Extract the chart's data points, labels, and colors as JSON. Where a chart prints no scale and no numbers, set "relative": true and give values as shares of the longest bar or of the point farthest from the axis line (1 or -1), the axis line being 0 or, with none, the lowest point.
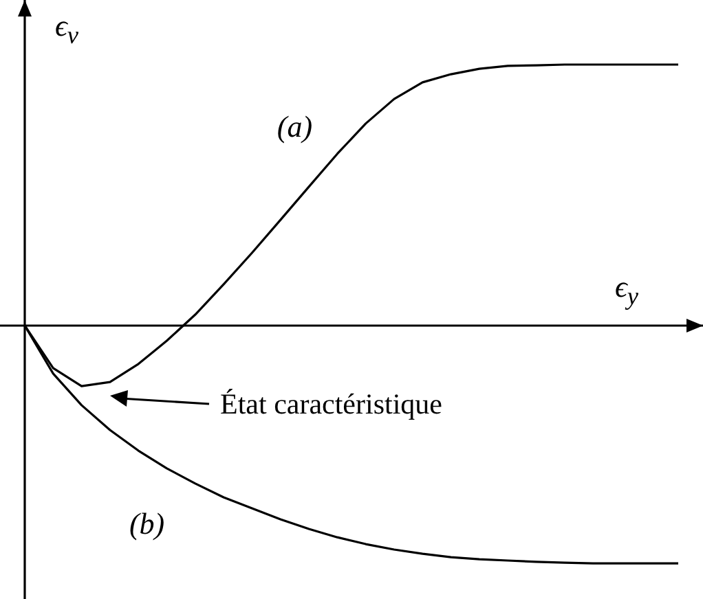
{
  "chart_data": {
    "type": "line",
    "relative": true,
    "xlabel": "ϵ$_{y}$",
    "ylabel": "ϵ$_{v}$",
    "categories": [
      null,
      null,
      null,
      null,
      null,
      null,
      null,
      null,
      null,
      null,
      null,
      null,
      null,
      null,
      null,
      null,
      null,
      null,
      null,
      null,
      null,
      null,
      null,
      null
    ],
    "series": [
      {
        "name": "(a)",
        "color": "#000000",
        "values": [
          0,
          -0.163,
          -0.232,
          -0.216,
          -0.147,
          -0.058,
          0.042,
          0.158,
          0.279,
          0.405,
          0.532,
          0.658,
          0.774,
          0.868,
          0.932,
          0.963,
          0.984,
          0.995,
          0.997,
          1,
          1,
          1,
          1,
          1
        ]
      },
      {
        "name": "(b)",
        "color": "#000000",
        "values": [
          0,
          -0.184,
          -0.305,
          -0.4,
          -0.479,
          -0.547,
          -0.605,
          -0.658,
          -0.7,
          -0.742,
          -0.779,
          -0.811,
          -0.837,
          -0.858,
          -0.874,
          -0.887,
          -0.895,
          -0.9,
          -0.905,
          -0.908,
          -0.911,
          -0.911,
          -0.911,
          -0.911
        ]
      }
    ],
    "annotations": [
      "État caractéristique"
    ],
    "marker": "none",
    "line_style": "solid"
  }
}
